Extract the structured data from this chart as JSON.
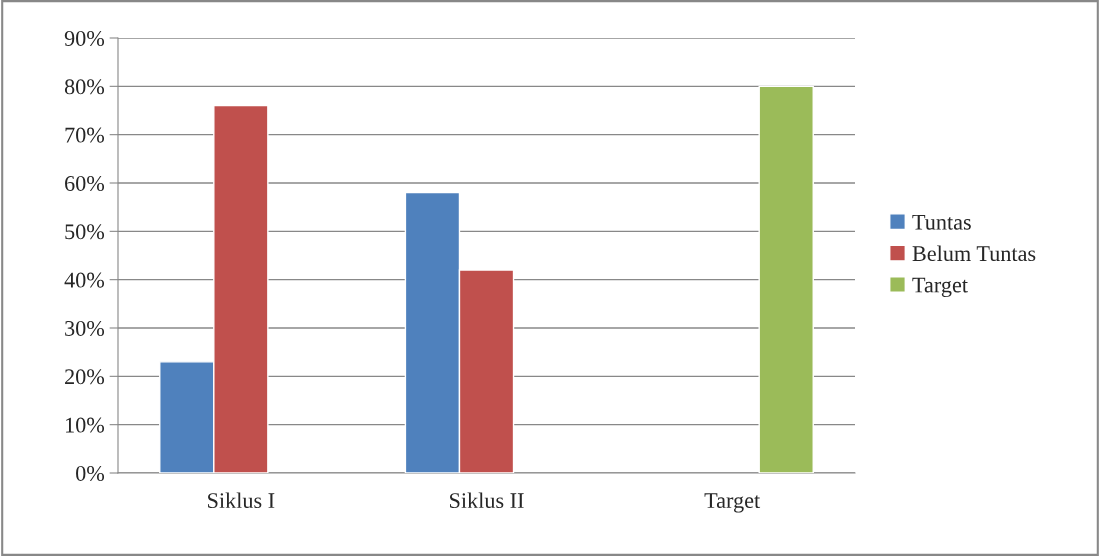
{
  "chart_data": {
    "type": "bar",
    "categories": [
      "Siklus I",
      "Siklus II",
      "Target"
    ],
    "series": [
      {
        "name": "Tuntas",
        "color": "#4f81bd",
        "values": [
          23,
          58,
          null
        ]
      },
      {
        "name": "Belum Tuntas",
        "color": "#c0504d",
        "values": [
          76,
          42,
          null
        ]
      },
      {
        "name": "Target",
        "color": "#9bbb59",
        "values": [
          null,
          null,
          80
        ]
      }
    ],
    "ylim": [
      0,
      90
    ],
    "yticks": [
      {
        "value": 0,
        "label": "0%"
      },
      {
        "value": 10,
        "label": "10%"
      },
      {
        "value": 20,
        "label": "20%"
      },
      {
        "value": 30,
        "label": "30%"
      },
      {
        "value": 40,
        "label": "40%"
      },
      {
        "value": 50,
        "label": "50%"
      },
      {
        "value": 60,
        "label": "60%"
      },
      {
        "value": 70,
        "label": "70%"
      },
      {
        "value": 80,
        "label": "80%"
      },
      {
        "value": 90,
        "label": "90%"
      }
    ],
    "grid": "y",
    "legend": "right"
  }
}
